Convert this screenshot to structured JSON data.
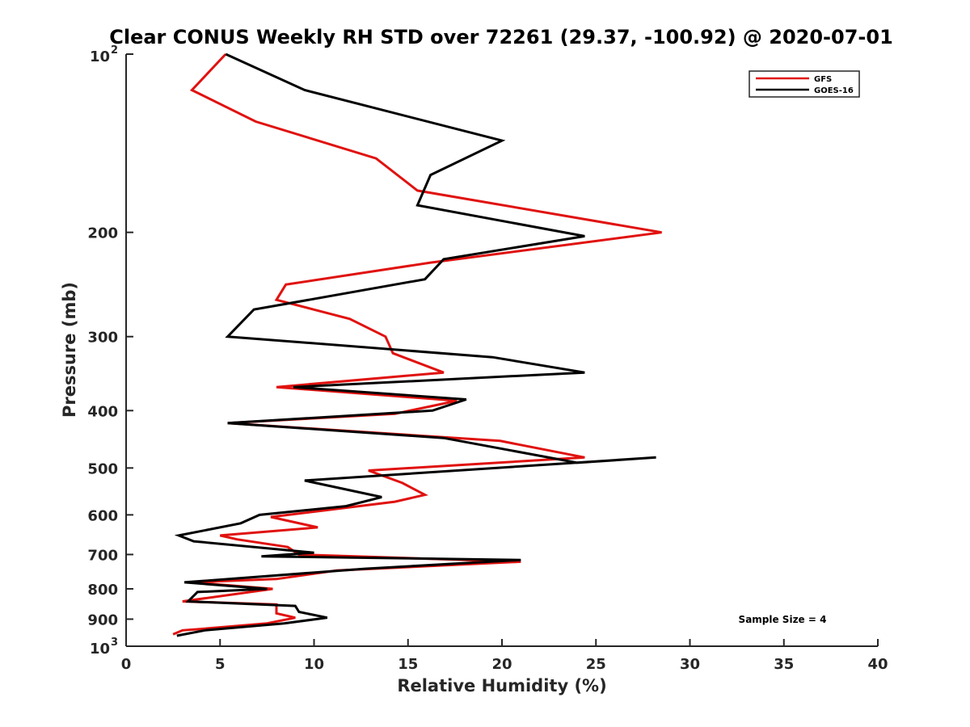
{
  "chart_data": {
    "type": "line",
    "title": "Clear CONUS Weekly RH STD over 72261 (29.37, -100.92) @ 2020-07-01",
    "xlabel": "Relative Humidity (%)",
    "ylabel": "Pressure (mb)",
    "xlim": [
      0,
      40
    ],
    "ylim": [
      100,
      1000
    ],
    "y_scale": "log",
    "y_reversed": true,
    "x_ticks": [
      "0",
      "5",
      "10",
      "15",
      "20",
      "25",
      "30",
      "35",
      "40"
    ],
    "y_ticks": [
      {
        "value": 100,
        "base": "10",
        "exp": "2"
      },
      {
        "value": 200,
        "label": "200"
      },
      {
        "value": 300,
        "label": "300"
      },
      {
        "value": 400,
        "label": "400"
      },
      {
        "value": 500,
        "label": "500"
      },
      {
        "value": 600,
        "label": "600"
      },
      {
        "value": 700,
        "label": "700"
      },
      {
        "value": 800,
        "label": "800"
      },
      {
        "value": 900,
        "label": "900"
      },
      {
        "value": 1000,
        "base": "10",
        "exp": "3"
      }
    ],
    "grid": false,
    "legend_position": "top-right",
    "annotation": "Sample Size = 4",
    "series": [
      {
        "name": "GFS",
        "color": "#e0120f",
        "points": [
          [
            5.3,
            100
          ],
          [
            3.5,
            115
          ],
          [
            6.9,
            130
          ],
          [
            13.3,
            150
          ],
          [
            15.5,
            170
          ],
          [
            28.5,
            200
          ],
          [
            16.2,
            225
          ],
          [
            8.5,
            245
          ],
          [
            8.0,
            260
          ],
          [
            11.9,
            280
          ],
          [
            13.8,
            300
          ],
          [
            14.2,
            320
          ],
          [
            16.9,
            345
          ],
          [
            8.0,
            365
          ],
          [
            17.6,
            385
          ],
          [
            14.3,
            405
          ],
          [
            5.4,
            420
          ],
          [
            19.9,
            450
          ],
          [
            24.4,
            480
          ],
          [
            12.9,
            505
          ],
          [
            14.7,
            530
          ],
          [
            15.9,
            555
          ],
          [
            14.3,
            570
          ],
          [
            7.7,
            605
          ],
          [
            10.2,
            630
          ],
          [
            5.0,
            650
          ],
          [
            5.9,
            660
          ],
          [
            8.6,
            680
          ],
          [
            9.2,
            700
          ],
          [
            21.0,
            720
          ],
          [
            11.2,
            745
          ],
          [
            8.0,
            770
          ],
          [
            3.5,
            780
          ],
          [
            7.8,
            800
          ],
          [
            3.0,
            840
          ],
          [
            8.0,
            850
          ],
          [
            8.0,
            880
          ],
          [
            9.0,
            895
          ],
          [
            7.5,
            915
          ],
          [
            4.0,
            935
          ],
          [
            3.0,
            940
          ],
          [
            2.5,
            955
          ]
        ]
      },
      {
        "name": "GOES-16",
        "color": "#000000",
        "points": [
          [
            5.3,
            100
          ],
          [
            9.5,
            115
          ],
          [
            20.0,
            140
          ],
          [
            16.2,
            160
          ],
          [
            15.5,
            180
          ],
          [
            24.4,
            203
          ],
          [
            16.9,
            222
          ],
          [
            15.9,
            240
          ],
          [
            6.8,
            270
          ],
          [
            5.4,
            300
          ],
          [
            19.5,
            325
          ],
          [
            24.4,
            345
          ],
          [
            8.9,
            365
          ],
          [
            18.1,
            383
          ],
          [
            16.3,
            400
          ],
          [
            5.4,
            420
          ],
          [
            16.9,
            445
          ],
          [
            24.0,
            490
          ],
          [
            28.2,
            480
          ],
          [
            9.5,
            525
          ],
          [
            13.6,
            560
          ],
          [
            11.7,
            580
          ],
          [
            7.1,
            600
          ],
          [
            6.1,
            620
          ],
          [
            2.8,
            650
          ],
          [
            3.6,
            665
          ],
          [
            10.0,
            695
          ],
          [
            7.2,
            705
          ],
          [
            21.0,
            715
          ],
          [
            12.7,
            740
          ],
          [
            3.1,
            780
          ],
          [
            7.5,
            800
          ],
          [
            3.8,
            810
          ],
          [
            3.3,
            840
          ],
          [
            9.0,
            855
          ],
          [
            9.2,
            875
          ],
          [
            10.7,
            895
          ],
          [
            8.4,
            915
          ],
          [
            4.2,
            940
          ],
          [
            2.7,
            960
          ]
        ]
      }
    ]
  }
}
